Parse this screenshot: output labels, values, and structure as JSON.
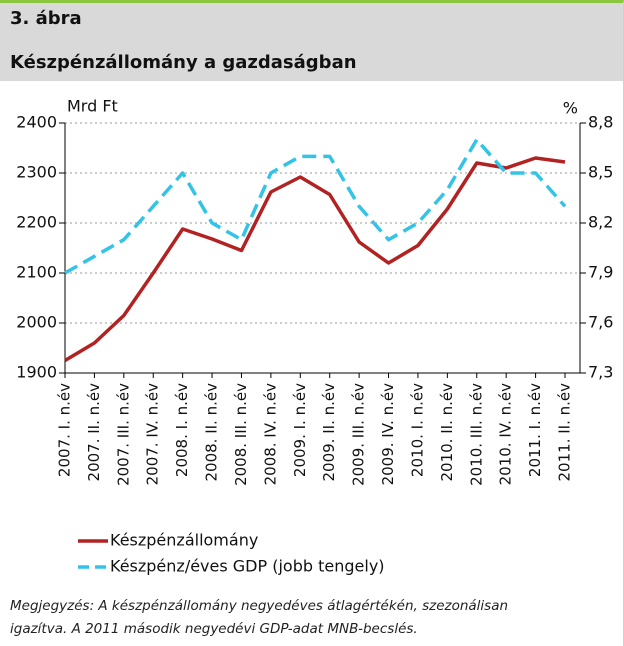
{
  "header": {
    "number": "3. ábra",
    "title": "Készpénzállomány a gazdaságban"
  },
  "chart_data": {
    "type": "line",
    "y_label": "Mrd Ft",
    "y2_label": "%",
    "categories": [
      "2007. I. n.év",
      "2007. II. n.év",
      "2007. III. n.év",
      "2007. IV. n.év",
      "2008. I. n.év",
      "2008. II. n.év",
      "2008. III. n.év",
      "2008. IV. n.év",
      "2009. I. n.év",
      "2009. II. n.év",
      "2009. III. n.év",
      "2009. IV. n.év",
      "2010. I. n.év",
      "2010. II. n.év",
      "2010. III. n.év",
      "2010. IV. n.év",
      "2011. I. n.év",
      "2011. II. n.év"
    ],
    "series": [
      {
        "name": "Készpénzállomány",
        "color": "#b22222",
        "dash": false,
        "values": [
          1925,
          1960,
          2015,
          2100,
          2188,
          2168,
          2145,
          2262,
          2292,
          2257,
          2162,
          2120,
          2155,
          2228,
          2320,
          2310,
          2330,
          2322
        ]
      },
      {
        "name": "Készpénz/éves GDP (jobb tengely)",
        "color": "#33c3e8",
        "dash": true,
        "axis": "y2",
        "values": [
          7.9,
          8.0,
          8.1,
          8.3,
          8.5,
          8.2,
          8.1,
          8.5,
          8.6,
          8.6,
          8.3,
          8.1,
          8.2,
          8.4,
          8.7,
          8.5,
          8.5,
          8.3
        ]
      }
    ],
    "ylim": [
      1900,
      2400
    ],
    "yticks": [
      1900,
      2000,
      2100,
      2200,
      2300,
      2400
    ],
    "y2lim": [
      7.3,
      8.8
    ],
    "y2ticks": [
      {
        "value": 7.3,
        "label": "7,3"
      },
      {
        "value": 7.6,
        "label": "7,6"
      },
      {
        "value": 7.9,
        "label": "7,9"
      },
      {
        "value": 8.2,
        "label": "8,2"
      },
      {
        "value": 8.5,
        "label": "8,5"
      },
      {
        "value": 8.8,
        "label": "8,8"
      }
    ],
    "grid": true
  },
  "note": [
    "Megjegyzés: A készpénzállomány negyedéves átlagértékén, szezonálisan",
    "igazítva. A 2011 második negyedévi GDP-adat MNB-becslés."
  ]
}
